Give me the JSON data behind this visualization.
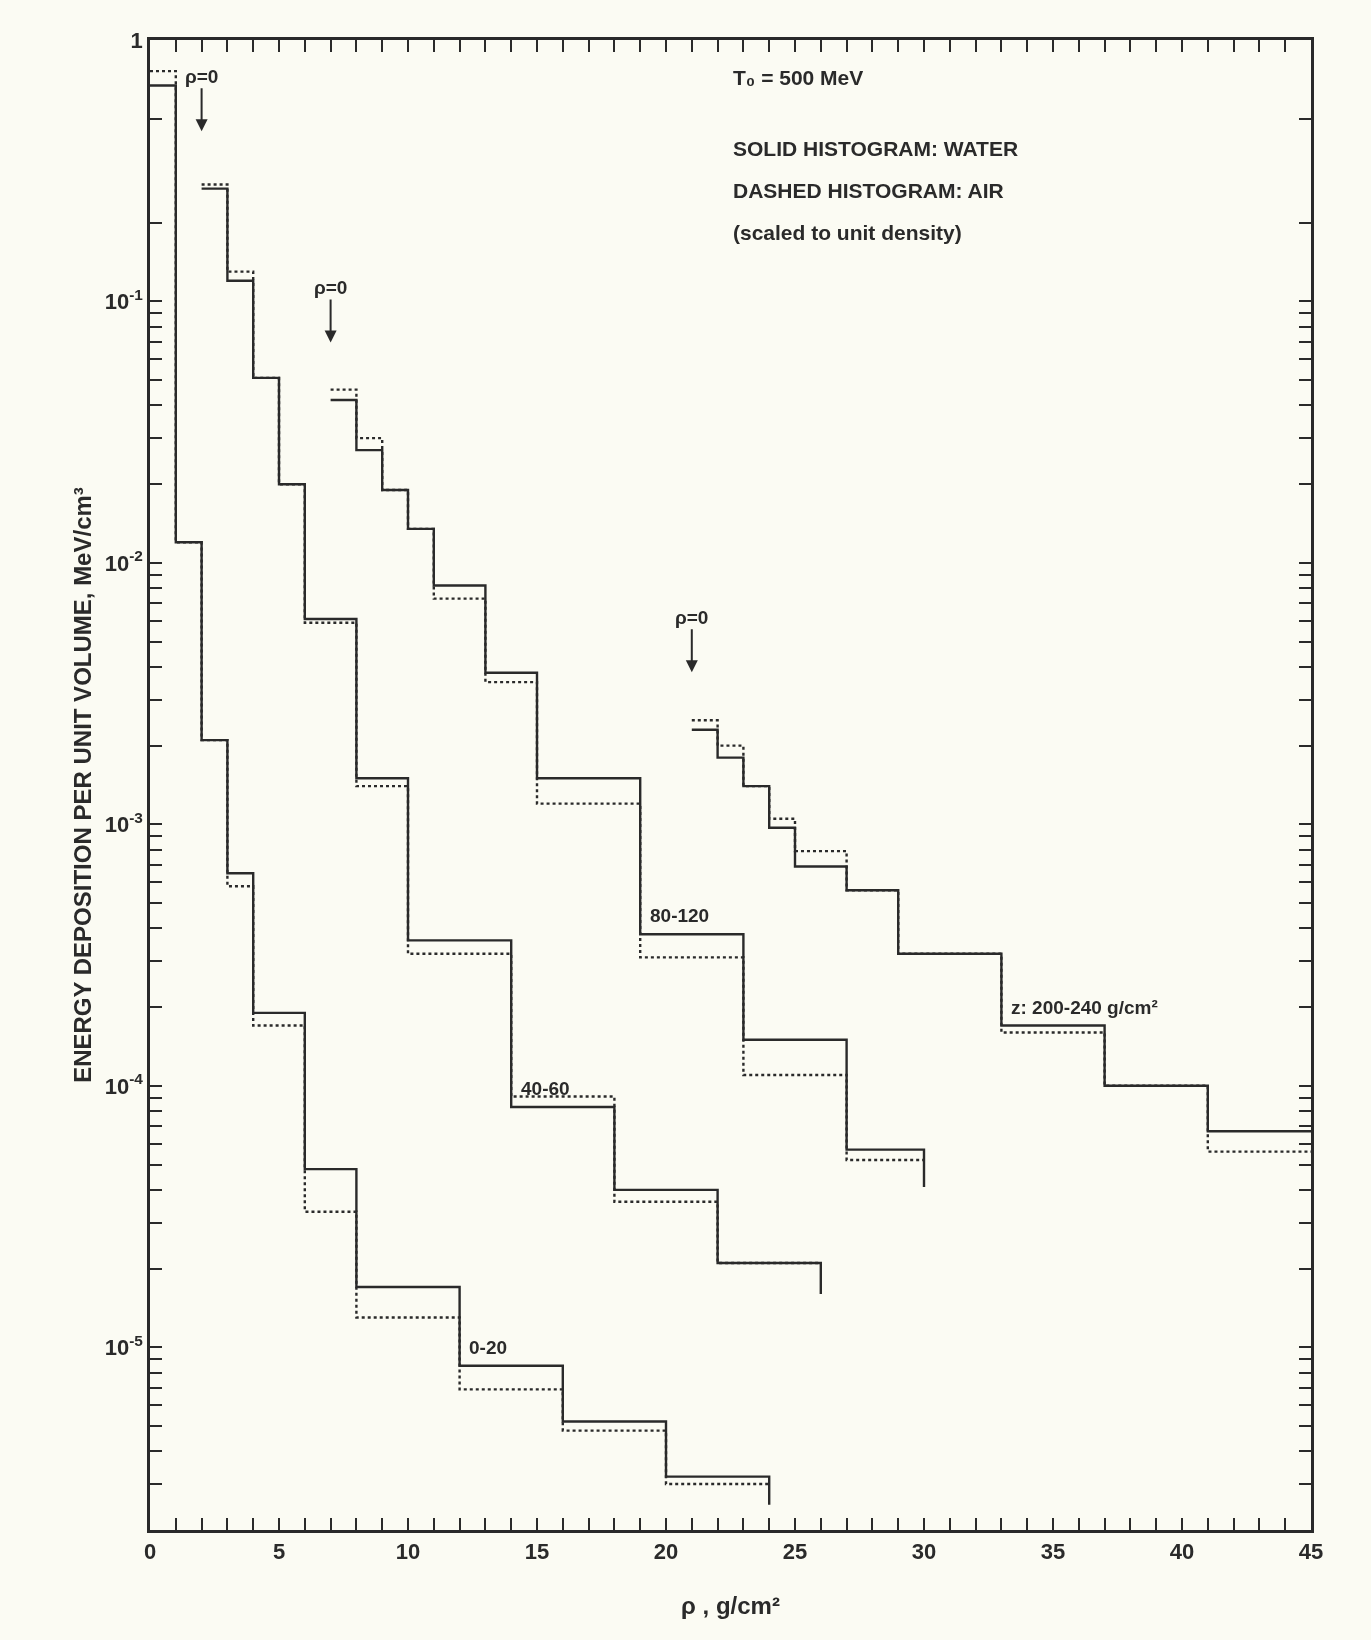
{
  "chart_data": {
    "type": "step",
    "xlabel": "ρ , g/cm²",
    "ylabel": "ENERGY DEPOSITION PER UNIT VOLUME, MeV/cm³",
    "log": "y",
    "marker": "none",
    "xlim": [
      0,
      45
    ],
    "ylim": [
      2e-06,
      1
    ],
    "xticks": [
      0,
      {
        "value": 1,
        "label": null
      },
      {
        "value": 2,
        "label": null
      },
      {
        "value": 3,
        "label": null
      },
      {
        "value": 4,
        "label": null
      },
      5,
      {
        "value": 6,
        "label": null
      },
      {
        "value": 7,
        "label": null
      },
      {
        "value": 8,
        "label": null
      },
      {
        "value": 9,
        "label": null
      },
      10,
      {
        "value": 11,
        "label": null
      },
      {
        "value": 12,
        "label": null
      },
      {
        "value": 13,
        "label": null
      },
      {
        "value": 14,
        "label": null
      },
      15,
      {
        "value": 16,
        "label": null
      },
      {
        "value": 17,
        "label": null
      },
      {
        "value": 18,
        "label": null
      },
      {
        "value": 19,
        "label": null
      },
      20,
      {
        "value": 21,
        "label": null
      },
      {
        "value": 22,
        "label": null
      },
      {
        "value": 23,
        "label": null
      },
      {
        "value": 24,
        "label": null
      },
      25,
      {
        "value": 26,
        "label": null
      },
      {
        "value": 27,
        "label": null
      },
      {
        "value": 28,
        "label": null
      },
      {
        "value": 29,
        "label": null
      },
      30,
      {
        "value": 31,
        "label": null
      },
      {
        "value": 32,
        "label": null
      },
      {
        "value": 33,
        "label": null
      },
      {
        "value": 34,
        "label": null
      },
      35,
      {
        "value": 36,
        "label": null
      },
      {
        "value": 37,
        "label": null
      },
      {
        "value": 38,
        "label": null
      },
      {
        "value": 39,
        "label": null
      },
      40,
      {
        "value": 41,
        "label": null
      },
      {
        "value": 42,
        "label": null
      },
      {
        "value": 43,
        "label": null
      },
      {
        "value": 44,
        "label": null
      },
      45
    ],
    "yticks": [
      {
        "value": 1,
        "label": "1"
      },
      {
        "value": 0.5,
        "label": null
      },
      {
        "value": 0.2,
        "label": null
      },
      {
        "value": 0.1,
        "label": "10$^{-1}$"
      },
      {
        "value": 0.09,
        "label": null
      },
      {
        "value": 0.08,
        "label": null
      },
      {
        "value": 0.07,
        "label": null
      },
      {
        "value": 0.06,
        "label": null
      },
      {
        "value": 0.05,
        "label": null
      },
      {
        "value": 0.04,
        "label": null
      },
      {
        "value": 0.03,
        "label": null
      },
      {
        "value": 0.02,
        "label": null
      },
      {
        "value": 0.01,
        "label": "10$^{-2}$"
      },
      {
        "value": 0.009,
        "label": null
      },
      {
        "value": 0.008,
        "label": null
      },
      {
        "value": 0.007,
        "label": null
      },
      {
        "value": 0.006,
        "label": null
      },
      {
        "value": 0.005,
        "label": null
      },
      {
        "value": 0.004,
        "label": null
      },
      {
        "value": 0.003,
        "label": null
      },
      {
        "value": 0.002,
        "label": null
      },
      {
        "value": 0.001,
        "label": "10$^{-3}$"
      },
      {
        "value": 0.0009,
        "label": null
      },
      {
        "value": 0.0008,
        "label": null
      },
      {
        "value": 0.0007,
        "label": null
      },
      {
        "value": 0.0006,
        "label": null
      },
      {
        "value": 0.0005,
        "label": null
      },
      {
        "value": 0.0004,
        "label": null
      },
      {
        "value": 0.0003,
        "label": null
      },
      {
        "value": 0.0002,
        "label": null
      },
      {
        "value": 0.0001,
        "label": "10$^{-4}$"
      },
      {
        "value": 9e-05,
        "label": null
      },
      {
        "value": 8e-05,
        "label": null
      },
      {
        "value": 7e-05,
        "label": null
      },
      {
        "value": 6e-05,
        "label": null
      },
      {
        "value": 5e-05,
        "label": null
      },
      {
        "value": 4e-05,
        "label": null
      },
      {
        "value": 3e-05,
        "label": null
      },
      {
        "value": 2e-05,
        "label": null
      },
      {
        "value": 1e-05,
        "label": "10$^{-5}$"
      },
      {
        "value": 9e-06,
        "label": null
      },
      {
        "value": 8e-06,
        "label": null
      },
      {
        "value": 7e-06,
        "label": null
      },
      {
        "value": 6e-06,
        "label": null
      },
      {
        "value": 5e-06,
        "label": null
      },
      {
        "value": 4e-06,
        "label": null
      },
      {
        "value": 3e-06,
        "label": null
      }
    ],
    "series": [
      {
        "name": "0-20",
        "color": "#2a2a2a",
        "line_style": "solid",
        "x": [
          0,
          1,
          2,
          3,
          4,
          6,
          8,
          12,
          16,
          20,
          24
        ],
        "values": [
          0.67,
          0.012,
          0.0021,
          0.00065,
          0.00019,
          4.8e-05,
          1.7e-05,
          8.5e-06,
          5.2e-06,
          3.2e-06,
          2.5e-06
        ]
      },
      {
        "color": "#2a2a2a",
        "line_style": "dotted",
        "x": [
          0,
          1,
          2,
          3,
          4,
          6,
          8,
          12,
          16,
          20,
          24
        ],
        "values": [
          0.76,
          0.012,
          0.0021,
          0.00058,
          0.00017,
          3.3e-05,
          1.3e-05,
          6.9e-06,
          4.8e-06,
          3e-06,
          3e-06
        ]
      },
      {
        "name": "40-60",
        "color": "#2a2a2a",
        "line_style": "solid",
        "x": [
          2,
          3,
          4,
          5,
          6,
          8,
          10,
          14,
          18,
          22,
          26
        ],
        "values": [
          0.27,
          0.12,
          0.051,
          0.02,
          0.0061,
          0.0015,
          0.00036,
          8.3e-05,
          4e-05,
          2.1e-05,
          1.6e-05
        ]
      },
      {
        "color": "#2a2a2a",
        "line_style": "dotted",
        "x": [
          2,
          3,
          4,
          5,
          6,
          8,
          10,
          14,
          18,
          22,
          26
        ],
        "values": [
          0.28,
          0.13,
          0.051,
          0.02,
          0.0059,
          0.0014,
          0.00032,
          9.1e-05,
          3.6e-05,
          2.1e-05,
          2.1e-05
        ]
      },
      {
        "name": "80-120",
        "color": "#2a2a2a",
        "line_style": "solid",
        "x": [
          7,
          8,
          9,
          10,
          11,
          13,
          15,
          19,
          23,
          27,
          30
        ],
        "values": [
          0.042,
          0.027,
          0.019,
          0.0135,
          0.0082,
          0.0038,
          0.0015,
          0.00038,
          0.00015,
          5.7e-05,
          4.1e-05
        ]
      },
      {
        "color": "#2a2a2a",
        "line_style": "dotted",
        "x": [
          7,
          8,
          9,
          10,
          11,
          13,
          15,
          19,
          23,
          27,
          30
        ],
        "values": [
          0.046,
          0.03,
          0.019,
          0.0135,
          0.0073,
          0.0035,
          0.0012,
          0.00031,
          0.00011,
          5.2e-05,
          5.2e-05
        ]
      },
      {
        "name": "z: 200-240 g/cm²",
        "color": "#2a2a2a",
        "line_style": "solid",
        "x": [
          21,
          22,
          23,
          24,
          25,
          27,
          29,
          33,
          37,
          41,
          45
        ],
        "values": [
          0.0023,
          0.0018,
          0.0014,
          0.00097,
          0.00069,
          0.00056,
          0.00032,
          0.00017,
          0.0001,
          6.7e-05,
          6.7e-05
        ]
      },
      {
        "color": "#2a2a2a",
        "line_style": "dotted",
        "x": [
          21,
          22,
          23,
          24,
          25,
          27,
          29,
          33,
          37,
          41,
          45
        ],
        "values": [
          0.0025,
          0.002,
          0.0014,
          0.00105,
          0.00079,
          0.00056,
          0.00032,
          0.00016,
          0.0001,
          5.6e-05,
          5.6e-05
        ]
      }
    ],
    "annotations": [
      "T₀ = 500 MeV",
      "SOLID HISTOGRAM: WATER",
      "DASHED HISTOGRAM: AIR",
      "(scaled to unit density)",
      "ρ=0",
      "ρ=0",
      "ρ=0"
    ]
  }
}
